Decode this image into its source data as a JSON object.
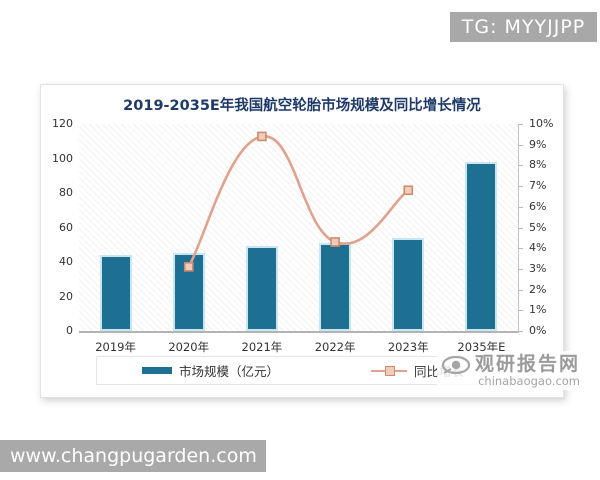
{
  "overlay": {
    "badge_text": "TG: MYYJJPP",
    "footer_url": "www.changpugarden.com"
  },
  "watermark": {
    "site_name": "观研报告网",
    "site_url": "chinabaogao.com"
  },
  "colors": {
    "bar": "#1e7093",
    "bar_edge": "#c9e6f0",
    "line": "#dfa28d",
    "marker_fill": "#f0cdbb",
    "marker_stroke": "#cf8a6f",
    "title": "#1f3a68",
    "badge_bg": "#a8a8a8"
  },
  "chart_data": {
    "type": "bar",
    "title": "2019-2035E年我国航空轮胎市场规模及同比增长情况",
    "categories": [
      "2019年",
      "2020年",
      "2021年",
      "2022年",
      "2023年",
      "2035年E"
    ],
    "series": [
      {
        "name": "市场规模（亿元）",
        "type": "bar",
        "axis": "left",
        "values": [
          44,
          45,
          49,
          51,
          54,
          98
        ]
      },
      {
        "name": "同比增长",
        "type": "line",
        "axis": "right",
        "values": [
          null,
          3.1,
          9.4,
          4.3,
          6.8,
          null
        ]
      }
    ],
    "left_axis": {
      "min": 0,
      "max": 120,
      "step": 20,
      "ticks": [
        "0",
        "20",
        "40",
        "60",
        "80",
        "100",
        "120"
      ]
    },
    "right_axis": {
      "min": 0,
      "max": 10,
      "step": 1,
      "ticks": [
        "0%",
        "1%",
        "2%",
        "3%",
        "4%",
        "5%",
        "6%",
        "7%",
        "8%",
        "9%",
        "10%"
      ]
    },
    "grid": false,
    "legend_position": "bottom"
  }
}
